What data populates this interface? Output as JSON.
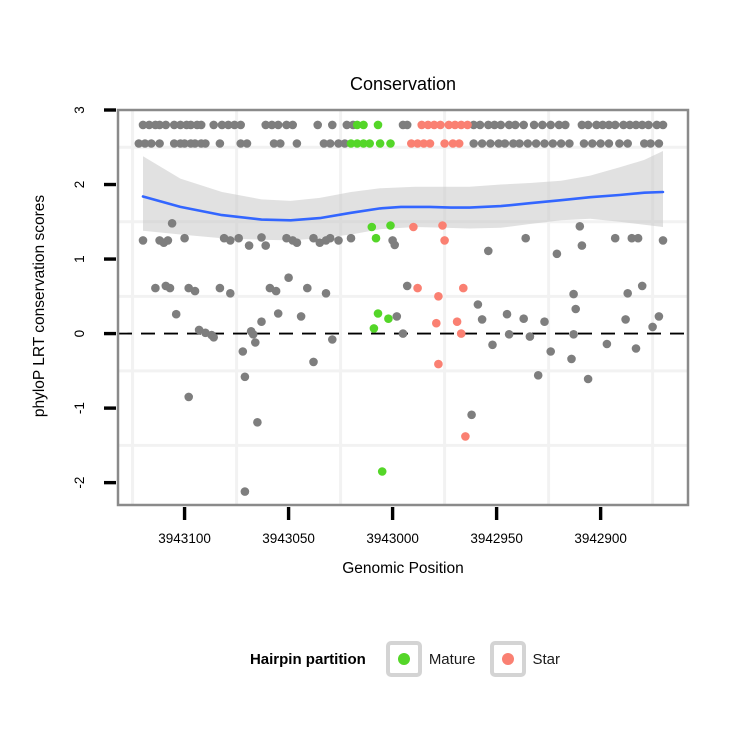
{
  "title": "Conservation",
  "axes": {
    "x": {
      "label": "Genomic Position",
      "tick_values": [
        3943100,
        3943050,
        3943000,
        3942950,
        3942900
      ],
      "tick_labels": [
        "3943100",
        "3943050",
        "3943000",
        "3942950",
        "3942900"
      ],
      "minor_values": [
        3943125,
        3943075,
        3943025,
        3942975,
        3942925,
        3942875
      ],
      "domain_left": 3943132,
      "domain_right": 3942858,
      "reversed": true
    },
    "y": {
      "label": "phyloP LRT conservation scores",
      "tick_values": [
        3,
        2,
        1,
        0,
        -1,
        -2
      ],
      "tick_labels": [
        "3",
        "2",
        "1",
        "0",
        "-1",
        "-2"
      ],
      "minor_values": [
        2.5,
        1.5,
        0.5,
        -0.5,
        -1.5
      ],
      "domain_top": 3.0,
      "domain_bottom": -2.3
    }
  },
  "legend": {
    "title": "Hairpin partition",
    "items": [
      {
        "label": "Mature",
        "color": "#54D628"
      },
      {
        "label": "Star",
        "color": "#FA8072"
      }
    ]
  },
  "colors": {
    "point_gray": "#7E7E7E",
    "mature_green": "#54D628",
    "star_salmon": "#FA8072",
    "smooth_blue": "#3366FF",
    "band_gray": "#C9C9C9",
    "panel_border": "#8A8A8A",
    "gridline": "#F2F2F2",
    "reference_black": "#000000"
  },
  "chart_data": {
    "type": "scatter",
    "title": "Conservation",
    "xlabel": "Genomic Position",
    "ylabel": "phyloP LRT conservation scores",
    "x_ticks": [
      3943100,
      3943050,
      3943000,
      3942950,
      3942900
    ],
    "y_ticks": [
      3,
      2,
      1,
      0,
      -1,
      -2
    ],
    "x_range": [
      3943132,
      3942858
    ],
    "y_range": [
      -2.3,
      3.0
    ],
    "x_axis_reversed": true,
    "grid": "minor-only",
    "legend_position": "bottom",
    "reference_line": {
      "y": 0,
      "style": "dashed",
      "color": "#000000"
    },
    "smooth": {
      "color": "#3366FF",
      "band_color": "#C9C9C9",
      "band_opacity": 0.55,
      "line": [
        [
          3943120,
          1.84
        ],
        [
          3943102,
          1.7
        ],
        [
          3943082,
          1.59
        ],
        [
          3943063,
          1.53
        ],
        [
          3943049,
          1.52
        ],
        [
          3943035,
          1.55
        ],
        [
          3943020,
          1.62
        ],
        [
          3943006,
          1.68
        ],
        [
          3942996,
          1.7
        ],
        [
          3942982,
          1.7
        ],
        [
          3942972,
          1.69
        ],
        [
          3942963,
          1.69
        ],
        [
          3942948,
          1.71
        ],
        [
          3942934,
          1.75
        ],
        [
          3942919,
          1.79
        ],
        [
          3942905,
          1.83
        ],
        [
          3942891,
          1.86
        ],
        [
          3942879,
          1.89
        ],
        [
          3942870,
          1.9
        ]
      ],
      "upper": [
        [
          3943120,
          2.38
        ],
        [
          3943102,
          2.08
        ],
        [
          3943082,
          1.9
        ],
        [
          3943063,
          1.8
        ],
        [
          3943049,
          1.78
        ],
        [
          3943035,
          1.82
        ],
        [
          3943020,
          1.9
        ],
        [
          3943006,
          1.95
        ],
        [
          3942989,
          1.97
        ],
        [
          3942975,
          1.97
        ],
        [
          3942963,
          1.97
        ],
        [
          3942948,
          2.0
        ],
        [
          3942934,
          2.02
        ],
        [
          3942919,
          2.05
        ],
        [
          3942905,
          2.12
        ],
        [
          3942891,
          2.23
        ],
        [
          3942879,
          2.33
        ],
        [
          3942870,
          2.45
        ]
      ],
      "lower": [
        [
          3943120,
          1.38
        ],
        [
          3943102,
          1.33
        ],
        [
          3943082,
          1.28
        ],
        [
          3943063,
          1.26
        ],
        [
          3943049,
          1.25
        ],
        [
          3943035,
          1.28
        ],
        [
          3943020,
          1.33
        ],
        [
          3943006,
          1.4
        ],
        [
          3942989,
          1.43
        ],
        [
          3942975,
          1.42
        ],
        [
          3942963,
          1.41
        ],
        [
          3942948,
          1.42
        ],
        [
          3942934,
          1.47
        ],
        [
          3942919,
          1.52
        ],
        [
          3942905,
          1.54
        ],
        [
          3942891,
          1.5
        ],
        [
          3942879,
          1.46
        ],
        [
          3942870,
          1.43
        ]
      ]
    },
    "series": [
      {
        "name": "Other",
        "color": "#7E7E7E",
        "points": [
          [
            3943120,
            2.8
          ],
          [
            3943117,
            2.8
          ],
          [
            3943114,
            2.8
          ],
          [
            3943112,
            2.8
          ],
          [
            3943109,
            2.8
          ],
          [
            3943105,
            2.8
          ],
          [
            3943102,
            2.8
          ],
          [
            3943099,
            2.8
          ],
          [
            3943097,
            2.8
          ],
          [
            3943094,
            2.8
          ],
          [
            3943092,
            2.8
          ],
          [
            3943086,
            2.8
          ],
          [
            3943082,
            2.8
          ],
          [
            3943079,
            2.8
          ],
          [
            3943076,
            2.8
          ],
          [
            3943073,
            2.8
          ],
          [
            3943061,
            2.8
          ],
          [
            3943058,
            2.8
          ],
          [
            3943055,
            2.8
          ],
          [
            3943051,
            2.8
          ],
          [
            3943048,
            2.8
          ],
          [
            3943036,
            2.8
          ],
          [
            3943029,
            2.8
          ],
          [
            3943022,
            2.8
          ],
          [
            3943019,
            2.8
          ],
          [
            3942995,
            2.8
          ],
          [
            3942993,
            2.8
          ],
          [
            3942961,
            2.8
          ],
          [
            3942958,
            2.8
          ],
          [
            3942954,
            2.8
          ],
          [
            3942951,
            2.8
          ],
          [
            3942948,
            2.8
          ],
          [
            3942944,
            2.8
          ],
          [
            3942941,
            2.8
          ],
          [
            3942937,
            2.8
          ],
          [
            3942932,
            2.8
          ],
          [
            3942928,
            2.8
          ],
          [
            3942924,
            2.8
          ],
          [
            3942920,
            2.8
          ],
          [
            3942917,
            2.8
          ],
          [
            3942909,
            2.8
          ],
          [
            3942906,
            2.8
          ],
          [
            3942902,
            2.8
          ],
          [
            3942899,
            2.8
          ],
          [
            3942896,
            2.8
          ],
          [
            3942893,
            2.8
          ],
          [
            3942889,
            2.8
          ],
          [
            3942886,
            2.8
          ],
          [
            3942883,
            2.8
          ],
          [
            3942880,
            2.8
          ],
          [
            3942877,
            2.8
          ],
          [
            3942873,
            2.8
          ],
          [
            3942870,
            2.8
          ],
          [
            3943122,
            2.55
          ],
          [
            3943119,
            2.55
          ],
          [
            3943116,
            2.55
          ],
          [
            3943112,
            2.55
          ],
          [
            3943105,
            2.55
          ],
          [
            3943102,
            2.55
          ],
          [
            3943100,
            2.55
          ],
          [
            3943097,
            2.55
          ],
          [
            3943095,
            2.55
          ],
          [
            3943092,
            2.55
          ],
          [
            3943090,
            2.55
          ],
          [
            3943083,
            2.55
          ],
          [
            3943073,
            2.55
          ],
          [
            3943070,
            2.55
          ],
          [
            3943057,
            2.55
          ],
          [
            3943054,
            2.55
          ],
          [
            3943046,
            2.55
          ],
          [
            3943033,
            2.55
          ],
          [
            3943030,
            2.55
          ],
          [
            3943026,
            2.55
          ],
          [
            3943023,
            2.55
          ],
          [
            3942961,
            2.55
          ],
          [
            3942957,
            2.55
          ],
          [
            3942953,
            2.55
          ],
          [
            3942949,
            2.55
          ],
          [
            3942946,
            2.55
          ],
          [
            3942942,
            2.55
          ],
          [
            3942939,
            2.55
          ],
          [
            3942935,
            2.55
          ],
          [
            3942931,
            2.55
          ],
          [
            3942927,
            2.55
          ],
          [
            3942923,
            2.55
          ],
          [
            3942919,
            2.55
          ],
          [
            3942915,
            2.55
          ],
          [
            3942908,
            2.55
          ],
          [
            3942904,
            2.55
          ],
          [
            3942900,
            2.55
          ],
          [
            3942896,
            2.55
          ],
          [
            3942891,
            2.55
          ],
          [
            3942887,
            2.55
          ],
          [
            3942879,
            2.55
          ],
          [
            3942876,
            2.55
          ],
          [
            3942872,
            2.55
          ],
          [
            3943120,
            1.25
          ],
          [
            3943112,
            1.25
          ],
          [
            3943110,
            1.22
          ],
          [
            3943108,
            1.25
          ],
          [
            3943106,
            1.48
          ],
          [
            3943100,
            1.28
          ],
          [
            3943081,
            1.28
          ],
          [
            3943078,
            1.25
          ],
          [
            3943074,
            1.28
          ],
          [
            3943069,
            1.18
          ],
          [
            3943063,
            1.29
          ],
          [
            3943061,
            1.18
          ],
          [
            3943051,
            1.28
          ],
          [
            3943048,
            1.25
          ],
          [
            3943046,
            1.22
          ],
          [
            3943038,
            1.28
          ],
          [
            3943035,
            1.22
          ],
          [
            3943032,
            1.25
          ],
          [
            3943030,
            1.28
          ],
          [
            3943026,
            1.25
          ],
          [
            3943020,
            1.28
          ],
          [
            3943000,
            1.25
          ],
          [
            3942999,
            1.19
          ],
          [
            3942954,
            1.11
          ],
          [
            3942936,
            1.28
          ],
          [
            3942921,
            1.07
          ],
          [
            3942910,
            1.44
          ],
          [
            3942909,
            1.18
          ],
          [
            3942893,
            1.28
          ],
          [
            3942885,
            1.28
          ],
          [
            3942882,
            1.28
          ],
          [
            3942870,
            1.25
          ],
          [
            3943114,
            0.61
          ],
          [
            3943109,
            0.64
          ],
          [
            3943107,
            0.61
          ],
          [
            3943098,
            0.61
          ],
          [
            3943095,
            0.57
          ],
          [
            3943083,
            0.61
          ],
          [
            3943078,
            0.54
          ],
          [
            3943059,
            0.61
          ],
          [
            3943056,
            0.57
          ],
          [
            3943050,
            0.75
          ],
          [
            3943041,
            0.61
          ],
          [
            3943032,
            0.54
          ],
          [
            3942993,
            0.64
          ],
          [
            3942959,
            0.39
          ],
          [
            3942913,
            0.53
          ],
          [
            3942887,
            0.54
          ],
          [
            3942880,
            0.64
          ],
          [
            3943104,
            0.26
          ],
          [
            3943055,
            0.27
          ],
          [
            3943044,
            0.23
          ],
          [
            3942998,
            0.23
          ],
          [
            3942957,
            0.19
          ],
          [
            3942945,
            0.26
          ],
          [
            3942937,
            0.2
          ],
          [
            3942927,
            0.16
          ],
          [
            3942912,
            0.33
          ],
          [
            3942888,
            0.19
          ],
          [
            3942875,
            0.09
          ],
          [
            3942872,
            0.23
          ],
          [
            3943093,
            0.05
          ],
          [
            3943090,
            0.01
          ],
          [
            3943087,
            -0.02
          ],
          [
            3943086,
            -0.05
          ],
          [
            3943068,
            0.03
          ],
          [
            3943067,
            -0.01
          ],
          [
            3943066,
            -0.12
          ],
          [
            3943063,
            0.16
          ],
          [
            3943029,
            -0.08
          ],
          [
            3942995,
            0.0
          ],
          [
            3942952,
            -0.15
          ],
          [
            3942944,
            -0.01
          ],
          [
            3942934,
            -0.04
          ],
          [
            3942913,
            -0.01
          ],
          [
            3942897,
            -0.14
          ],
          [
            3942883,
            -0.2
          ],
          [
            3943072,
            -0.24
          ],
          [
            3943071,
            -0.58
          ],
          [
            3943098,
            -0.85
          ],
          [
            3943065,
            -1.19
          ],
          [
            3943038,
            -0.38
          ],
          [
            3943071,
            -2.12
          ],
          [
            3942962,
            -1.09
          ],
          [
            3942930,
            -0.56
          ],
          [
            3942924,
            -0.24
          ],
          [
            3942914,
            -0.34
          ],
          [
            3942906,
            -0.61
          ]
        ]
      },
      {
        "name": "Mature",
        "color": "#54D628",
        "points": [
          [
            3943017,
            2.8
          ],
          [
            3943014,
            2.8
          ],
          [
            3943007,
            2.8
          ],
          [
            3943020,
            2.55
          ],
          [
            3943017,
            2.55
          ],
          [
            3943014,
            2.55
          ],
          [
            3943011,
            2.55
          ],
          [
            3943006,
            2.55
          ],
          [
            3943001,
            2.55
          ],
          [
            3943010,
            1.43
          ],
          [
            3943001,
            1.45
          ],
          [
            3943008,
            1.28
          ],
          [
            3943007,
            0.27
          ],
          [
            3943002,
            0.2
          ],
          [
            3943009,
            0.07
          ],
          [
            3943005,
            -1.85
          ]
        ]
      },
      {
        "name": "Star",
        "color": "#FA8072",
        "points": [
          [
            3942986,
            2.8
          ],
          [
            3942983,
            2.8
          ],
          [
            3942980,
            2.8
          ],
          [
            3942977,
            2.8
          ],
          [
            3942973,
            2.8
          ],
          [
            3942970,
            2.8
          ],
          [
            3942967,
            2.8
          ],
          [
            3942964,
            2.8
          ],
          [
            3942991,
            2.55
          ],
          [
            3942988,
            2.55
          ],
          [
            3942985,
            2.55
          ],
          [
            3942982,
            2.55
          ],
          [
            3942975,
            2.55
          ],
          [
            3942971,
            2.55
          ],
          [
            3942968,
            2.55
          ],
          [
            3942990,
            1.43
          ],
          [
            3942976,
            1.45
          ],
          [
            3942975,
            1.25
          ],
          [
            3942988,
            0.61
          ],
          [
            3942978,
            0.5
          ],
          [
            3942966,
            0.61
          ],
          [
            3942979,
            0.14
          ],
          [
            3942969,
            0.16
          ],
          [
            3942967,
            0.0
          ],
          [
            3942978,
            -0.41
          ],
          [
            3942965,
            -1.38
          ]
        ]
      }
    ]
  }
}
